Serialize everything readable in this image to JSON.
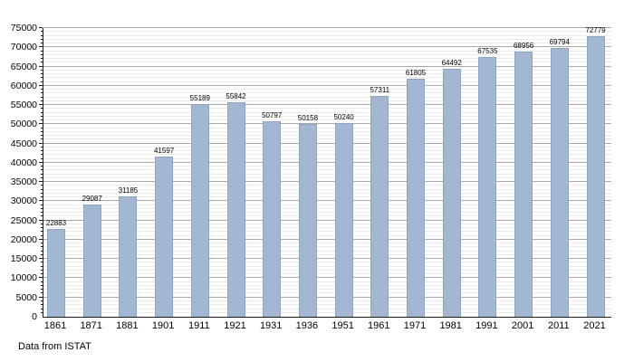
{
  "chart_data": {
    "type": "bar",
    "title": "",
    "categories": [
      "1861",
      "1871",
      "1881",
      "1901",
      "1911",
      "1921",
      "1931",
      "1936",
      "1951",
      "1961",
      "1971",
      "1981",
      "1991",
      "2001",
      "2011",
      "2021"
    ],
    "values": [
      22883,
      29087,
      31185,
      41597,
      55189,
      55842,
      50797,
      50158,
      50240,
      57311,
      61805,
      64492,
      67535,
      68956,
      69794,
      72779
    ],
    "value_labels": [
      "22883",
      "29087",
      "31185",
      "41597",
      "55189",
      "55842",
      "50797",
      "50158",
      "50240",
      "57311",
      "61805",
      "64492",
      "67535",
      "68956",
      "69794",
      "72779"
    ],
    "xlabel": "",
    "ylabel": "",
    "ylim": [
      0,
      75000
    ],
    "y_major_step": 5000,
    "y_minor_step": 1000,
    "y_ticks": [
      "0",
      "5000",
      "10000",
      "15000",
      "20000",
      "25000",
      "30000",
      "35000",
      "40000",
      "45000",
      "50000",
      "55000",
      "60000",
      "65000",
      "70000",
      "75000"
    ],
    "grid": "horizontal-major-and-minor",
    "legend_position": "none",
    "bar_color": "#a2b8d2",
    "bar_border_color": "#8ea5bf",
    "major_grid_color": "#a9a9a9",
    "minor_grid_color": "#ebebeb",
    "axis_color": "#1a1a1a"
  },
  "footer": {
    "text": "Data from ISTAT"
  }
}
